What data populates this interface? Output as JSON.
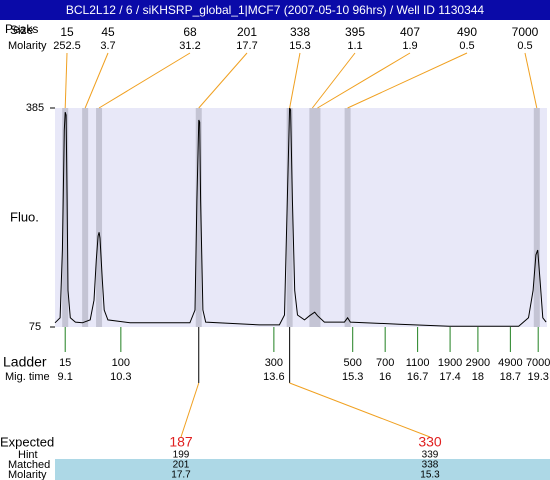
{
  "header": {
    "title": "BCL2L12 / 6 / siKHSRP_global_1|MCF7 (2007-05-10 96hrs) / Well ID 1130344"
  },
  "chart_data": {
    "type": "electropherogram",
    "y_label": "Fluo.",
    "ylim": [
      75,
      385
    ],
    "yticks": [
      75,
      385
    ],
    "xlim": [
      8.88,
      19.49
    ],
    "row_labels": {
      "peaks": "Peaks",
      "size": "Size",
      "molarity": "Molarity",
      "ladder": "Ladder",
      "mig_time": "Mig. time"
    },
    "peaks": [
      {
        "size": 15,
        "molarity": 252.5,
        "time": 9.1
      },
      {
        "size": 45,
        "molarity": 3.7,
        "time": 9.53
      },
      {
        "size": 68,
        "molarity": 31.2,
        "time": 9.83
      },
      {
        "size": 201,
        "molarity": 17.7,
        "time": 11.98
      },
      {
        "size": 338,
        "molarity": 15.3,
        "time": 13.94
      },
      {
        "size": 395,
        "molarity": 1.1,
        "time": 14.43
      },
      {
        "size": 407,
        "molarity": 1.9,
        "time": 14.54
      },
      {
        "size": 490,
        "molarity": 0.5,
        "time": 15.19
      },
      {
        "size": 7000,
        "molarity": 0.5,
        "time": 19.27
      }
    ],
    "ladder": [
      {
        "size": 15,
        "time": 9.1
      },
      {
        "size": 100,
        "time": 10.3
      },
      {
        "size": 300,
        "time": 13.6
      },
      {
        "size": 500,
        "time": 15.3
      },
      {
        "size": 700,
        "time": 16
      },
      {
        "size": 1100,
        "time": 16.7
      },
      {
        "size": 1900,
        "time": 17.4
      },
      {
        "size": 2900,
        "time": 18
      },
      {
        "size": 4900,
        "time": 18.7
      },
      {
        "size": 7000,
        "time": 19.3
      }
    ],
    "trace": {
      "color": "#000000",
      "x": [
        8.88,
        8.99,
        9.04,
        9.08,
        9.1,
        9.12,
        9.14,
        9.16,
        9.21,
        9.32,
        9.47,
        9.64,
        9.72,
        9.77,
        9.81,
        9.83,
        9.85,
        9.9,
        9.94,
        10.02,
        10.5,
        11.79,
        11.9,
        11.94,
        11.98,
        12.0,
        12.02,
        12.07,
        12.13,
        13.29,
        13.72,
        13.83,
        13.9,
        13.94,
        13.96,
        14.0,
        14.05,
        14.11,
        14.26,
        14.37,
        14.48,
        14.54,
        14.69,
        15.12,
        15.19,
        15.25,
        16.3,
        17.38,
        18.45,
        18.88,
        19.09,
        19.19,
        19.25,
        19.29,
        19.34,
        19.4,
        19.47
      ],
      "y": [
        81,
        88,
        184,
        354,
        379,
        375,
        255,
        127,
        88,
        82,
        81,
        85,
        113,
        170,
        204,
        209,
        201,
        142,
        99,
        85,
        81,
        81,
        99,
        255,
        368,
        365,
        255,
        99,
        82,
        78,
        78,
        92,
        283,
        385,
        382,
        255,
        127,
        92,
        85,
        91,
        96,
        91,
        82,
        82,
        88,
        82,
        79,
        76,
        76,
        76,
        88,
        127,
        177,
        184,
        142,
        88,
        82
      ]
    },
    "table": {
      "labels": {
        "expected": "Expected",
        "hint": "Hint",
        "matched": "Matched",
        "molarity": "Molarity"
      },
      "columns": [
        {
          "expected": 187,
          "hint": 199,
          "matched": 201,
          "molarity": 17.7
        },
        {
          "expected": 330,
          "hint": 339,
          "matched": 338,
          "molarity": 15.3
        }
      ]
    }
  }
}
